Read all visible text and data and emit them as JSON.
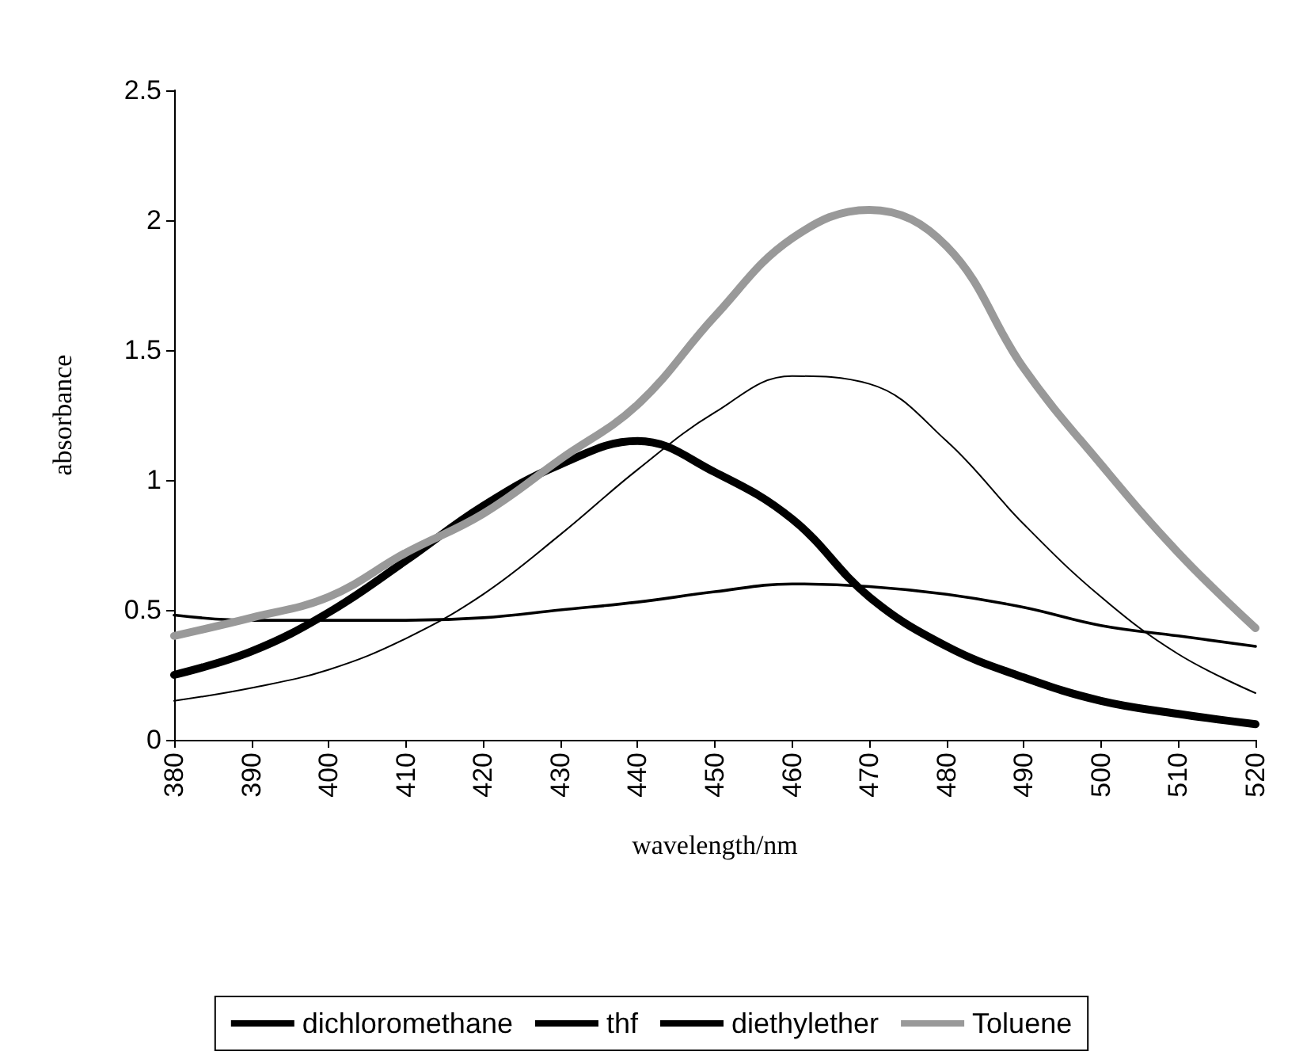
{
  "chart_data": {
    "type": "line",
    "xlabel": "wavelength/nm",
    "ylabel": "absorbance",
    "x": [
      380,
      390,
      400,
      410,
      420,
      430,
      440,
      450,
      460,
      470,
      480,
      490,
      500,
      510,
      520
    ],
    "xlim": [
      380,
      520
    ],
    "xticks": [
      380,
      390,
      400,
      410,
      420,
      430,
      440,
      450,
      460,
      470,
      480,
      490,
      500,
      510,
      520
    ],
    "ylim": [
      0,
      2.5
    ],
    "yticks": [
      0,
      0.5,
      1,
      1.5,
      2,
      2.5
    ],
    "grid": false,
    "legend": "bottom",
    "marker": "none",
    "line_style": "solid",
    "series": [
      {
        "name": "dichloromethane",
        "color": "#000000",
        "values": [
          0.25,
          0.34,
          0.49,
          0.69,
          0.9,
          1.06,
          1.15,
          1.03,
          0.85,
          0.55,
          0.36,
          0.24,
          0.15,
          0.1,
          0.06
        ]
      },
      {
        "name": "thf",
        "color": "#000000",
        "values": [
          0.15,
          0.2,
          0.27,
          0.39,
          0.56,
          0.79,
          1.04,
          1.26,
          1.4,
          1.37,
          1.15,
          0.83,
          0.55,
          0.33,
          0.18
        ]
      },
      {
        "name": "diethylether",
        "color": "#000000",
        "values": [
          0.48,
          0.46,
          0.46,
          0.46,
          0.47,
          0.5,
          0.53,
          0.57,
          0.6,
          0.59,
          0.56,
          0.51,
          0.44,
          0.4,
          0.36
        ]
      },
      {
        "name": "Toluene",
        "color": "#999999",
        "values": [
          0.4,
          0.47,
          0.55,
          0.72,
          0.87,
          1.08,
          1.29,
          1.63,
          1.93,
          2.04,
          1.9,
          1.43,
          1.06,
          0.72,
          0.43
        ]
      }
    ]
  }
}
